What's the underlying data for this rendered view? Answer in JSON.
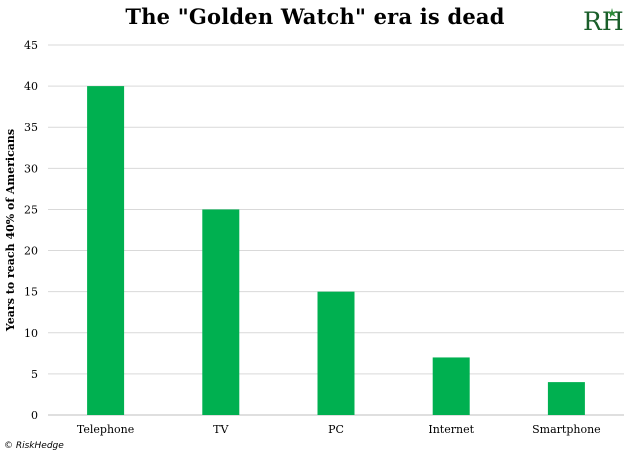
{
  "title": "The \"Golden Watch\" era is dead",
  "copyright": "© RiskHedge",
  "logo_text": "RH",
  "colors": {
    "bar": "#00b050",
    "grid": "#d9d9d9",
    "axis": "#bfbfbf",
    "logo": "#1a5e2a"
  },
  "chart_data": {
    "type": "bar",
    "categories": [
      "Telephone",
      "TV",
      "PC",
      "Internet",
      "Smartphone"
    ],
    "values": [
      40,
      25,
      15,
      7,
      4
    ],
    "title": "The \"Golden Watch\" era is dead",
    "xlabel": "",
    "ylabel": "Years to reach 40% of Americans",
    "ylim": [
      0,
      45
    ],
    "yticks": [
      0,
      5,
      10,
      15,
      20,
      25,
      30,
      35,
      40,
      45
    ],
    "grid": true,
    "legend": "none"
  }
}
